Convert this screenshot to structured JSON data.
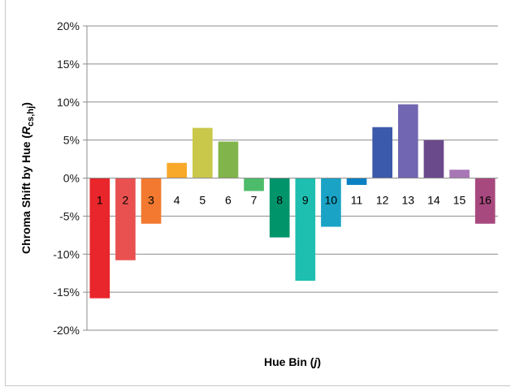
{
  "chart_data": {
    "type": "bar",
    "xlabel": "Hue Bin (j)",
    "xlabel_parts": {
      "text": "Hue Bin (",
      "var": "j",
      "close": ")"
    },
    "ylabel": "Chroma Shift by Hue (Rcs,hj)",
    "ylabel_parts": {
      "text": "Chroma Shift by Hue (",
      "var": "R",
      "sub": "cs,hj",
      "close": ")"
    },
    "ylim": [
      -20,
      20
    ],
    "y_unit": "%",
    "y_ticks": [
      "20%",
      "15%",
      "10%",
      "5%",
      "0%",
      "-5%",
      "-10%",
      "-15%",
      "-20%"
    ],
    "y_tick_values": [
      20,
      15,
      10,
      5,
      0,
      -5,
      -10,
      -15,
      -20
    ],
    "grid": "horizontal",
    "legend": "none",
    "categories": [
      "1",
      "2",
      "3",
      "4",
      "5",
      "6",
      "7",
      "8",
      "9",
      "10",
      "11",
      "12",
      "13",
      "14",
      "15",
      "16"
    ],
    "values": [
      -15.8,
      -10.8,
      -6.0,
      2.0,
      6.6,
      4.8,
      -1.7,
      -7.8,
      -13.5,
      -6.4,
      -0.9,
      6.7,
      9.7,
      5.0,
      1.1,
      -6.0
    ],
    "colors": [
      "#e8262b",
      "#e8514f",
      "#f2792f",
      "#f8a92a",
      "#c9c84b",
      "#81b44a",
      "#4dbc6a",
      "#00946b",
      "#1ebfb0",
      "#1aa3c5",
      "#0b81c3",
      "#3c5aab",
      "#7166b1",
      "#6b4a8c",
      "#a877b6",
      "#a7497e"
    ]
  }
}
